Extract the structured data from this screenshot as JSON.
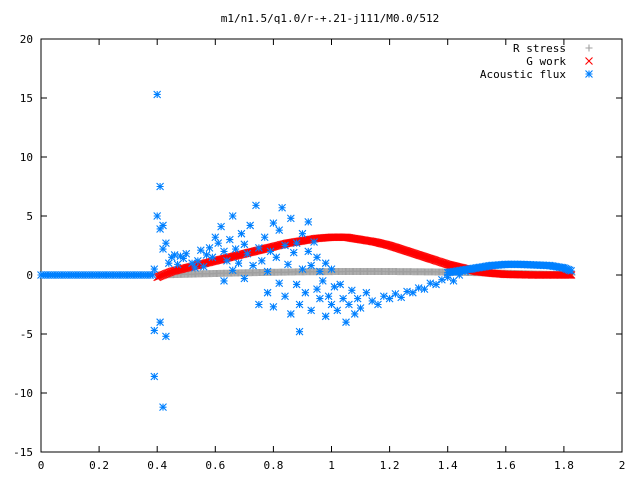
{
  "chart_data": {
    "type": "scatter",
    "title": "m1/n1.5/q1.0/r-+.21-j111/M0.0/512",
    "xlabel": "",
    "ylabel": "",
    "xlim": [
      0,
      2
    ],
    "ylim": [
      -15,
      20
    ],
    "xticks": [
      "0",
      "0.2",
      "0.4",
      "0.6",
      "0.8",
      "1",
      "1.2",
      "1.4",
      "1.6",
      "1.8",
      "2"
    ],
    "yticks": [
      "-15",
      "-10",
      "-5",
      "0",
      "5",
      "10",
      "15",
      "20"
    ],
    "grid": false,
    "legend_position": "top-right",
    "series": [
      {
        "name": "R stress",
        "marker": "plus",
        "color": "#a0a0a0",
        "generator": "x in [0.4, 1.83] step 0.004; y = 0.3*sin(pi*(x-0.4)/1.43)",
        "points": [
          [
            0.4,
            0.0
          ],
          [
            0.6,
            0.12
          ],
          [
            0.8,
            0.24
          ],
          [
            1.0,
            0.3
          ],
          [
            1.2,
            0.26
          ],
          [
            1.4,
            0.12
          ],
          [
            1.6,
            0.03
          ],
          [
            1.83,
            0.0
          ]
        ]
      },
      {
        "name": "G work",
        "marker": "cross",
        "color": "#ff0000",
        "points": [
          [
            0.4,
            -0.2
          ],
          [
            0.45,
            0.3
          ],
          [
            0.5,
            0.6
          ],
          [
            0.55,
            0.9
          ],
          [
            0.6,
            1.2
          ],
          [
            0.65,
            1.5
          ],
          [
            0.7,
            1.8
          ],
          [
            0.75,
            2.1
          ],
          [
            0.8,
            2.4
          ],
          [
            0.85,
            2.7
          ],
          [
            0.9,
            2.9
          ],
          [
            0.95,
            3.1
          ],
          [
            1.0,
            3.2
          ],
          [
            1.05,
            3.2
          ],
          [
            1.1,
            3.0
          ],
          [
            1.15,
            2.8
          ],
          [
            1.2,
            2.5
          ],
          [
            1.25,
            2.1
          ],
          [
            1.3,
            1.7
          ],
          [
            1.35,
            1.3
          ],
          [
            1.4,
            0.9
          ],
          [
            1.45,
            0.6
          ],
          [
            1.5,
            0.3
          ],
          [
            1.55,
            0.15
          ],
          [
            1.6,
            0.05
          ],
          [
            1.7,
            0.0
          ],
          [
            1.8,
            0.0
          ],
          [
            1.83,
            0.0
          ]
        ]
      },
      {
        "name": "Acoustic flux",
        "marker": "star",
        "color": "#0080ff",
        "baseline_segment": [
          [
            0.0,
            0.0
          ],
          [
            0.39,
            0.0
          ]
        ],
        "tail_curve": [
          [
            1.4,
            0.2
          ],
          [
            1.45,
            0.4
          ],
          [
            1.5,
            0.6
          ],
          [
            1.55,
            0.8
          ],
          [
            1.6,
            0.9
          ],
          [
            1.65,
            0.9
          ],
          [
            1.7,
            0.85
          ],
          [
            1.75,
            0.8
          ],
          [
            1.8,
            0.6
          ],
          [
            1.83,
            0.3
          ]
        ],
        "points": [
          [
            0.39,
            0.5
          ],
          [
            0.39,
            -4.7
          ],
          [
            0.39,
            -8.6
          ],
          [
            0.4,
            15.3
          ],
          [
            0.4,
            5.0
          ],
          [
            0.41,
            7.5
          ],
          [
            0.41,
            3.9
          ],
          [
            0.42,
            4.2
          ],
          [
            0.42,
            -11.2
          ],
          [
            0.41,
            -4.0
          ],
          [
            0.43,
            -5.2
          ],
          [
            0.42,
            2.2
          ],
          [
            0.43,
            2.7
          ],
          [
            0.44,
            1.0
          ],
          [
            0.45,
            1.5
          ],
          [
            0.46,
            1.7
          ],
          [
            0.47,
            0.9
          ],
          [
            0.48,
            1.6
          ],
          [
            0.49,
            1.4
          ],
          [
            0.5,
            1.8
          ],
          [
            0.52,
            1.0
          ],
          [
            0.53,
            0.6
          ],
          [
            0.54,
            1.2
          ],
          [
            0.55,
            2.1
          ],
          [
            0.56,
            0.7
          ],
          [
            0.57,
            1.7
          ],
          [
            0.58,
            2.3
          ],
          [
            0.59,
            1.5
          ],
          [
            0.6,
            3.2
          ],
          [
            0.61,
            2.7
          ],
          [
            0.62,
            4.1
          ],
          [
            0.63,
            2.0
          ],
          [
            0.63,
            -0.5
          ],
          [
            0.64,
            1.2
          ],
          [
            0.65,
            3.0
          ],
          [
            0.66,
            0.4
          ],
          [
            0.66,
            5.0
          ],
          [
            0.67,
            2.2
          ],
          [
            0.68,
            1.0
          ],
          [
            0.69,
            3.5
          ],
          [
            0.7,
            2.6
          ],
          [
            0.7,
            -0.3
          ],
          [
            0.71,
            1.8
          ],
          [
            0.72,
            4.2
          ],
          [
            0.73,
            0.8
          ],
          [
            0.74,
            5.9
          ],
          [
            0.75,
            2.3
          ],
          [
            0.75,
            -2.5
          ],
          [
            0.76,
            1.2
          ],
          [
            0.77,
            3.2
          ],
          [
            0.78,
            0.3
          ],
          [
            0.78,
            -1.5
          ],
          [
            0.79,
            2.0
          ],
          [
            0.8,
            4.4
          ],
          [
            0.8,
            -2.7
          ],
          [
            0.81,
            1.5
          ],
          [
            0.82,
            3.8
          ],
          [
            0.82,
            -0.7
          ],
          [
            0.83,
            5.7
          ],
          [
            0.84,
            -1.8
          ],
          [
            0.84,
            2.5
          ],
          [
            0.85,
            0.9
          ],
          [
            0.86,
            -3.3
          ],
          [
            0.86,
            4.8
          ],
          [
            0.87,
            1.9
          ],
          [
            0.88,
            -0.8
          ],
          [
            0.88,
            2.7
          ],
          [
            0.89,
            -2.5
          ],
          [
            0.89,
            -4.8
          ],
          [
            0.9,
            3.5
          ],
          [
            0.9,
            0.5
          ],
          [
            0.91,
            -1.5
          ],
          [
            0.92,
            2.0
          ],
          [
            0.92,
            4.5
          ],
          [
            0.93,
            -3.0
          ],
          [
            0.93,
            0.8
          ],
          [
            0.94,
            2.8
          ],
          [
            0.95,
            -1.2
          ],
          [
            0.95,
            1.5
          ],
          [
            0.96,
            -2.0
          ],
          [
            0.96,
            0.3
          ],
          [
            0.97,
            -0.5
          ],
          [
            0.98,
            1.0
          ],
          [
            0.98,
            -3.5
          ],
          [
            0.99,
            -1.8
          ],
          [
            1.0,
            0.5
          ],
          [
            1.0,
            -2.5
          ],
          [
            1.01,
            -1.0
          ],
          [
            1.02,
            -3.0
          ],
          [
            1.03,
            -0.8
          ],
          [
            1.04,
            -2.0
          ],
          [
            1.05,
            -4.0
          ],
          [
            1.06,
            -2.5
          ],
          [
            1.07,
            -1.3
          ],
          [
            1.08,
            -3.3
          ],
          [
            1.09,
            -2.0
          ],
          [
            1.1,
            -2.8
          ],
          [
            1.12,
            -1.5
          ],
          [
            1.14,
            -2.2
          ],
          [
            1.16,
            -2.5
          ],
          [
            1.18,
            -1.8
          ],
          [
            1.2,
            -2.0
          ],
          [
            1.22,
            -1.6
          ],
          [
            1.24,
            -1.9
          ],
          [
            1.26,
            -1.4
          ],
          [
            1.28,
            -1.5
          ],
          [
            1.3,
            -1.1
          ],
          [
            1.32,
            -1.2
          ],
          [
            1.34,
            -0.7
          ],
          [
            1.36,
            -0.8
          ],
          [
            1.38,
            -0.4
          ],
          [
            1.4,
            -0.2
          ],
          [
            1.42,
            -0.5
          ],
          [
            1.44,
            0.0
          ],
          [
            1.46,
            0.3
          ],
          [
            1.48,
            0.5
          ]
        ]
      }
    ]
  }
}
